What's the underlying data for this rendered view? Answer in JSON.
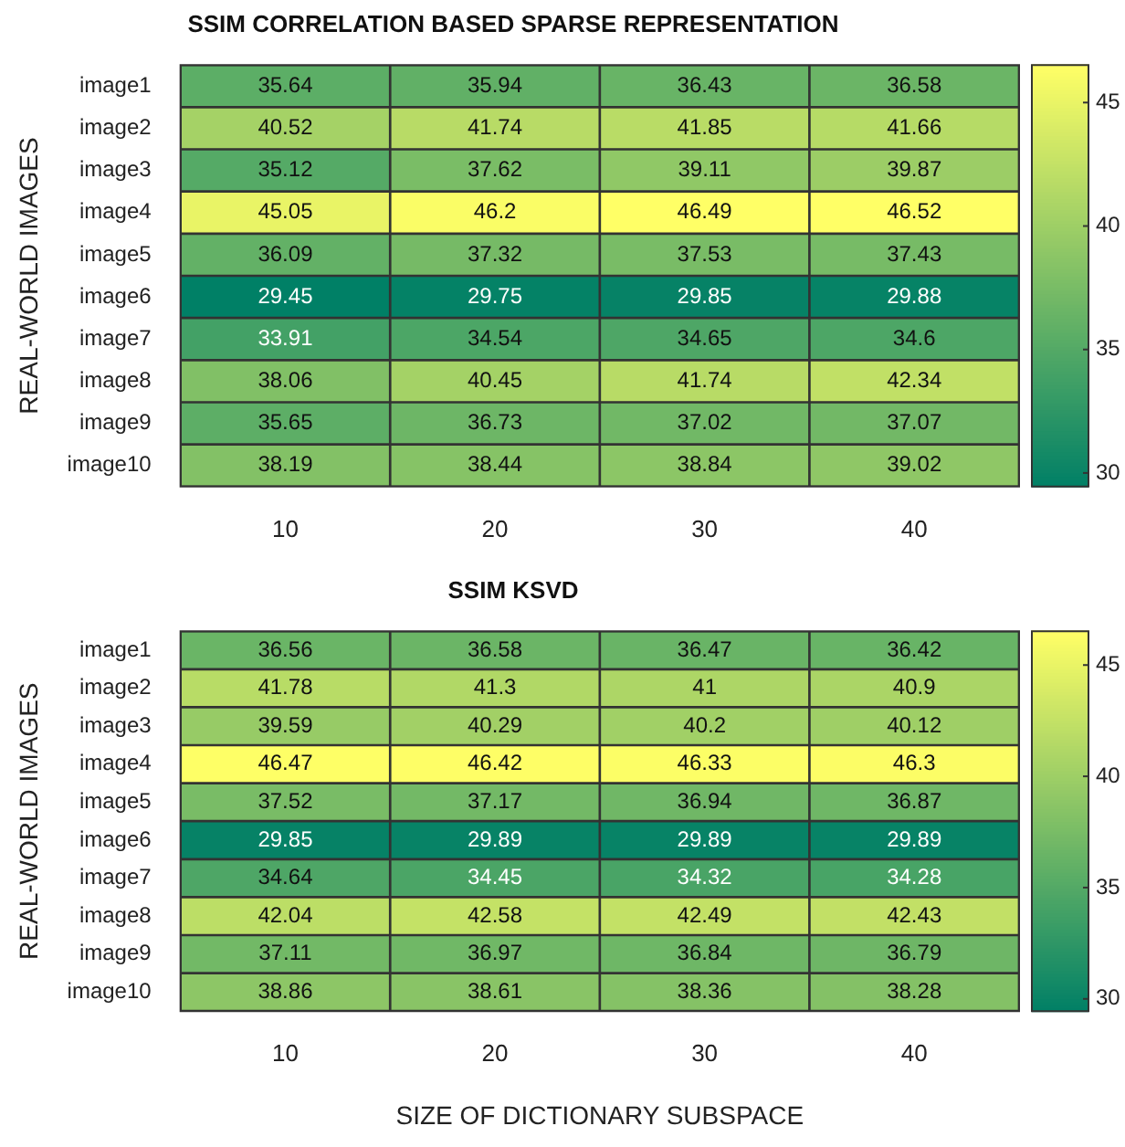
{
  "chart_data": [
    {
      "type": "heatmap",
      "title": "SSIM CORRELATION BASED SPARSE REPRESENTATION",
      "ylabel": "REAL-WORLD IMAGES",
      "categories": [
        "10",
        "20",
        "30",
        "40"
      ],
      "y_categories": [
        "image1",
        "image2",
        "image3",
        "image4",
        "image5",
        "image6",
        "image7",
        "image8",
        "image9",
        "image10"
      ],
      "cells": [
        [
          35.64,
          35.94,
          36.43,
          36.58
        ],
        [
          40.52,
          41.74,
          41.85,
          41.66
        ],
        [
          35.12,
          37.62,
          39.11,
          39.87
        ],
        [
          45.05,
          46.2,
          46.49,
          46.52
        ],
        [
          36.09,
          37.32,
          37.53,
          37.43
        ],
        [
          29.45,
          29.75,
          29.85,
          29.88
        ],
        [
          33.91,
          34.54,
          34.65,
          34.6
        ],
        [
          38.06,
          40.45,
          41.74,
          42.34
        ],
        [
          35.65,
          36.73,
          37.02,
          37.07
        ],
        [
          38.19,
          38.44,
          38.84,
          39.02
        ]
      ],
      "clim": [
        29.45,
        46.52
      ],
      "cticks": [
        30,
        35,
        40,
        45
      ],
      "data_labels": true
    },
    {
      "type": "heatmap",
      "title": "SSIM KSVD",
      "xlabel": "SIZE OF DICTIONARY SUBSPACE",
      "ylabel": "REAL-WORLD IMAGES",
      "categories": [
        "10",
        "20",
        "30",
        "40"
      ],
      "y_categories": [
        "image1",
        "image2",
        "image3",
        "image4",
        "image5",
        "image6",
        "image7",
        "image8",
        "image9",
        "image10"
      ],
      "cells": [
        [
          36.56,
          36.58,
          36.47,
          36.42
        ],
        [
          41.78,
          41.3,
          41,
          40.9
        ],
        [
          39.59,
          40.29,
          40.2,
          40.12
        ],
        [
          46.47,
          46.42,
          46.33,
          46.3
        ],
        [
          37.52,
          37.17,
          36.94,
          36.87
        ],
        [
          29.85,
          29.89,
          29.89,
          29.89
        ],
        [
          34.64,
          34.45,
          34.32,
          34.28
        ],
        [
          42.04,
          42.58,
          42.49,
          42.43
        ],
        [
          37.11,
          36.97,
          36.84,
          36.79
        ],
        [
          38.86,
          38.61,
          38.36,
          38.28
        ]
      ],
      "clim": [
        29.45,
        46.52
      ],
      "cticks": [
        30,
        35,
        40,
        45
      ],
      "data_labels": true
    }
  ]
}
